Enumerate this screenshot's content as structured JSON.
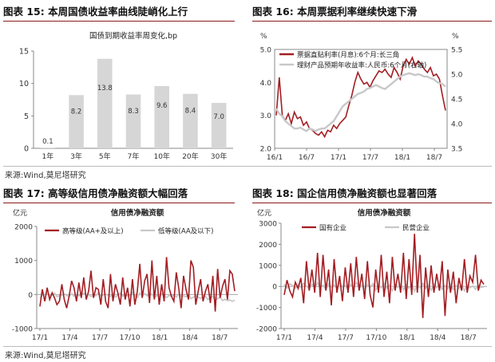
{
  "figures": [
    {
      "label": "图表 15:",
      "title": "本周国债收益率曲线陡峭化上行"
    },
    {
      "label": "图表 16:",
      "title": "本周票据利率继续快速下滑"
    },
    {
      "label": "图表 17:",
      "title": "高等级信用债净融资额大幅回落"
    },
    {
      "label": "图表 18:",
      "title": "国企信用债净融资额也显著回落"
    }
  ],
  "sources": [
    "来源:Wind,莫尼塔研究",
    "来源:Wind,莫尼塔研究"
  ],
  "colors": {
    "red": "#a31e23",
    "gray": "#c8c8c8",
    "bar": "#d6d6d6",
    "title_rule": "#8a1a1a"
  },
  "chart_data": [
    {
      "type": "bar",
      "title": "国债到期收益率周变化,bp",
      "categories": [
        "1年",
        "3年",
        "5年",
        "7年",
        "10年",
        "20年",
        "30年"
      ],
      "values": [
        0.1,
        8.2,
        13.8,
        8.3,
        9.6,
        8.4,
        7.0
      ],
      "data_labels": [
        "0.1",
        "8.2",
        "13.8",
        "8.3",
        "9.6",
        "8.4",
        "7.0"
      ],
      "ylim": [
        0,
        15
      ],
      "yticks": [
        "0",
        "5",
        "10",
        "15"
      ],
      "grid": false
    },
    {
      "type": "line",
      "y_unit_left": "%",
      "y_unit_right": "%",
      "x_ticks": [
        "16/1",
        "16/7",
        "17/1",
        "17/7",
        "18/1",
        "18/7"
      ],
      "ylim_left": [
        2.0,
        5.0
      ],
      "yticks_left": [
        "2.0",
        "3.0",
        "4.0",
        "5.0"
      ],
      "ylim_right": [
        3.5,
        5.5
      ],
      "yticks_right": [
        "3.5",
        "4.0",
        "4.5",
        "5.0",
        "5.5"
      ],
      "legend": "top-left",
      "series": [
        {
          "name": "票据直贴利率(月息):6个月:长三角",
          "axis": "left",
          "color": "#a31e23",
          "values": [
            3.0,
            4.15,
            3.0,
            2.85,
            3.05,
            2.75,
            3.1,
            2.9,
            2.95,
            2.7,
            2.8,
            2.6,
            2.55,
            2.45,
            2.4,
            2.5,
            2.35,
            2.55,
            2.5,
            2.7,
            2.6,
            2.75,
            2.85,
            2.95,
            3.3,
            3.6,
            4.0,
            4.3,
            4.1,
            3.95,
            4.0,
            3.85,
            4.05,
            4.2,
            4.35,
            4.3,
            4.4,
            4.25,
            4.15,
            4.45,
            4.3,
            4.1,
            4.5,
            4.7,
            4.55,
            4.75,
            4.5,
            4.65,
            4.55,
            4.4,
            4.3,
            4.45,
            4.2,
            4.25,
            4.1,
            3.6,
            3.15
          ]
        },
        {
          "name": "理财产品预期年收益率:人民币:6个月(右轴)",
          "axis": "right",
          "color": "#c8c8c8",
          "values": [
            4.3,
            4.2,
            4.15,
            4.05,
            4.0,
            3.95,
            3.9,
            3.9,
            3.92,
            3.88,
            3.85,
            3.9,
            3.88,
            3.85,
            3.88,
            3.9,
            3.9,
            3.95,
            4.0,
            4.05,
            4.15,
            4.25,
            4.35,
            4.4,
            4.45,
            4.5,
            4.55,
            4.6,
            4.62,
            4.65,
            4.7,
            4.72,
            4.75,
            4.78,
            4.75,
            4.72,
            4.7,
            4.75,
            4.8,
            4.85,
            4.9,
            4.95,
            4.98,
            5.0,
            5.02,
            5.0,
            4.98,
            5.0,
            4.98,
            4.95,
            4.95,
            4.92,
            4.9,
            4.85,
            4.82,
            4.8,
            4.75
          ]
        }
      ]
    },
    {
      "type": "line",
      "title": "信用债净融资额",
      "y_unit_left": "亿元",
      "x_ticks": [
        "17/1",
        "17/4",
        "17/7",
        "17/10",
        "18/1",
        "18/4",
        "18/7"
      ],
      "ylim": [
        -1000,
        2000
      ],
      "yticks": [
        "-1000",
        "0",
        "1000",
        "2000"
      ],
      "legend": "top",
      "series": [
        {
          "name": "高等级(AA+及以上)",
          "color": "#a31e23",
          "values": [
            -350,
            150,
            -200,
            200,
            -150,
            50,
            -100,
            -300,
            -200,
            300,
            -150,
            -400,
            -50,
            400,
            200,
            -200,
            350,
            -100,
            500,
            -150,
            100,
            700,
            -100,
            200,
            150,
            -300,
            450,
            -200,
            -400,
            600,
            -200,
            300,
            50,
            -300,
            500,
            -150,
            200,
            -350,
            450,
            -300,
            100,
            900,
            -100,
            400,
            600,
            -250,
            1000,
            -150,
            550,
            -300,
            300,
            -200,
            1100,
            200,
            -50,
            -200,
            650,
            200,
            -400,
            550,
            150,
            -150,
            1000,
            800,
            -300,
            100,
            450,
            -200,
            100,
            300,
            -250,
            550,
            -500,
            750,
            -100,
            250,
            450,
            -150,
            700,
            600,
            100
          ]
        },
        {
          "name": "低等级(AA及以下)",
          "color": "#c8c8c8",
          "values": [
            -100,
            -20,
            0,
            20,
            -40,
            -10,
            40,
            -60,
            -40,
            -20,
            20,
            -30,
            -60,
            30,
            -50,
            0,
            -40,
            -20,
            40,
            -10,
            0,
            -60,
            -20,
            -40,
            60,
            -40,
            -20,
            20,
            -30,
            -60,
            30,
            -80,
            -20,
            40,
            -50,
            20,
            -40,
            -30,
            60,
            -40,
            -90,
            40,
            -60,
            30,
            -40,
            -40,
            20,
            -100,
            -30,
            -60,
            20,
            -40,
            -90,
            -30,
            -50,
            -20,
            -80,
            20,
            -60,
            -40,
            -70,
            0,
            -120,
            -80,
            -40,
            -80,
            -120,
            -30,
            -60,
            -150,
            -90,
            -60,
            -160,
            -120,
            -80,
            -180,
            -140,
            -180,
            -160,
            -200,
            -170
          ]
        }
      ]
    },
    {
      "type": "line",
      "title": "信用债净融资额",
      "y_unit_left": "亿元",
      "x_ticks": [
        "17/1",
        "17/4",
        "17/7",
        "17/10",
        "18/1",
        "18/4",
        "18/7"
      ],
      "ylim": [
        -2000,
        3000
      ],
      "yticks": [
        "-2000",
        "-1000",
        "0",
        "1000",
        "2000",
        "3000"
      ],
      "legend": "top",
      "series": [
        {
          "name": "国有企业",
          "color": "#a31e23",
          "values": [
            -400,
            300,
            -200,
            -500,
            200,
            -100,
            400,
            -800,
            1200,
            -200,
            800,
            -300,
            1600,
            -500,
            1500,
            -200,
            800,
            -900,
            1300,
            -300,
            500,
            -700,
            900,
            -300,
            1100,
            -500,
            1400,
            -200,
            600,
            -600,
            1200,
            -400,
            -1000,
            800,
            -300,
            1500,
            -500,
            700,
            -800,
            1400,
            -200,
            600,
            -300,
            1600,
            -600,
            1300,
            -400,
            2500,
            -300,
            1500,
            -1500,
            900,
            -500,
            1000,
            -300,
            600,
            -200,
            1200,
            -1400,
            800,
            -300,
            700,
            -800,
            400,
            -200,
            1300,
            -300,
            500,
            200,
            1500,
            -200,
            300,
            100
          ]
        },
        {
          "name": "民营企业",
          "color": "#c8c8c8",
          "values": [
            100,
            -80,
            120,
            50,
            -100,
            80,
            -50,
            150,
            20,
            -120,
            100,
            -60,
            180,
            -40,
            60,
            -150,
            120,
            -30,
            80,
            -100,
            160,
            -20,
            60,
            -140,
            100,
            -50,
            200,
            -80,
            60,
            -160,
            100,
            -40,
            120,
            -180,
            40,
            -60,
            140,
            -100,
            50,
            -200,
            80,
            -40,
            120,
            -160,
            60,
            -80,
            100,
            -220,
            60,
            -60,
            140,
            -100,
            40,
            -180,
            100,
            -60,
            80,
            -140,
            40,
            -120,
            100,
            -160,
            60,
            -100,
            30,
            -200,
            80,
            -60,
            20,
            -140,
            60,
            -40,
            -20
          ]
        }
      ]
    }
  ]
}
